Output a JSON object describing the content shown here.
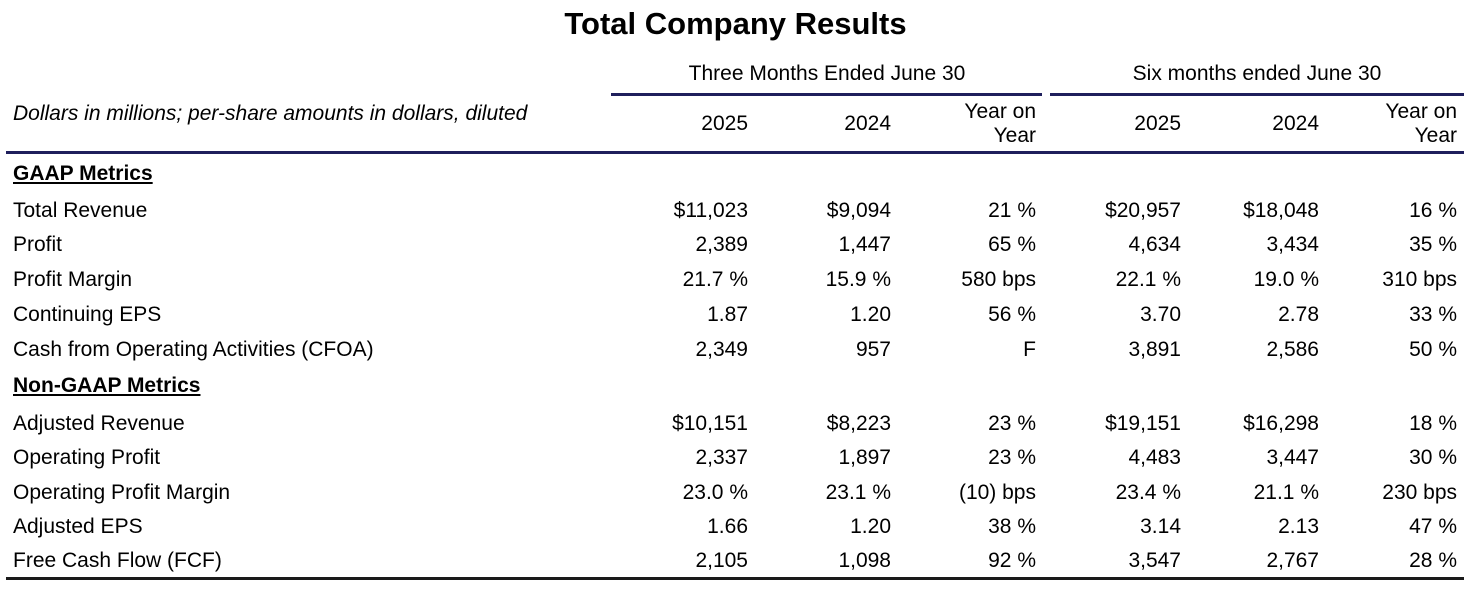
{
  "title": "Total Company Results",
  "groups": {
    "three_months": "Three Months Ended June 30",
    "six_months": "Six months ended June 30"
  },
  "description": "Dollars in millions; per-share amounts in dollars, diluted",
  "columns": {
    "c1": "2025",
    "c2": "2024",
    "c3_line1": "Year on",
    "c3_line2": "Year",
    "c4": "2025",
    "c5": "2024",
    "c6_line1": "Year on",
    "c6_line2": "Year"
  },
  "sections": [
    {
      "heading": "GAAP Metrics",
      "rows": [
        {
          "label": "Total Revenue",
          "values": [
            "$11,023",
            "$9,094",
            "21 %",
            "$20,957",
            "$18,048",
            "16 %"
          ]
        },
        {
          "label": "Profit",
          "values": [
            "2,389",
            "1,447",
            "65 %",
            "4,634",
            "3,434",
            "35 %"
          ]
        },
        {
          "label": "Profit Margin",
          "values": [
            "21.7 %",
            "15.9 %",
            "580 bps",
            "22.1 %",
            "19.0 %",
            "310 bps"
          ]
        },
        {
          "label": "Continuing EPS",
          "values": [
            "1.87",
            "1.20",
            "56 %",
            "3.70",
            "2.78",
            "33 %"
          ]
        },
        {
          "label": "Cash from Operating Activities (CFOA)",
          "values": [
            "2,349",
            "957",
            "F",
            "3,891",
            "2,586",
            "50 %"
          ]
        }
      ]
    },
    {
      "heading": "Non-GAAP Metrics",
      "rows": [
        {
          "label": "Adjusted Revenue",
          "values": [
            "$10,151",
            "$8,223",
            "23 %",
            "$19,151",
            "$16,298",
            "18 %"
          ]
        },
        {
          "label": "Operating Profit",
          "values": [
            "2,337",
            "1,897",
            "23 %",
            "4,483",
            "3,447",
            "30 %"
          ]
        },
        {
          "label": "Operating Profit Margin",
          "values": [
            "23.0 %",
            "23.1 %",
            "(10) bps",
            "23.4 %",
            "21.1 %",
            "230 bps"
          ]
        },
        {
          "label": "Adjusted EPS",
          "values": [
            "1.66",
            "1.20",
            "38 %",
            "3.14",
            "2.13",
            "47 %"
          ]
        },
        {
          "label": "Free Cash Flow (FCF)",
          "values": [
            "2,105",
            "1,098",
            "92 %",
            "3,547",
            "2,767",
            "28 %"
          ]
        }
      ]
    }
  ]
}
